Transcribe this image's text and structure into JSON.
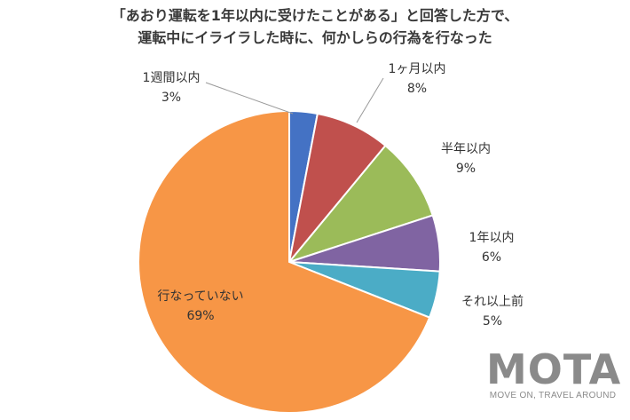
{
  "title": {
    "line1": "「あおり運転を1年以内に受けたことがある」と回答した方で、",
    "line2": "運転中にイライラした時に、何かしらの行為を行なった"
  },
  "chart_data": {
    "type": "pie",
    "slices": [
      {
        "label": "1週間以内",
        "value": 3,
        "value_label": "3%",
        "color": "#4472c4"
      },
      {
        "label": "1ヶ月以内",
        "value": 8,
        "value_label": "8%",
        "color": "#c0504d"
      },
      {
        "label": "半年以内",
        "value": 9,
        "value_label": "9%",
        "color": "#9bbb59"
      },
      {
        "label": "1年以内",
        "value": 6,
        "value_label": "6%",
        "color": "#8064a2"
      },
      {
        "label": "それ以上前",
        "value": 5,
        "value_label": "5%",
        "color": "#4bacc6"
      },
      {
        "label": "行なっていない",
        "value": 69,
        "value_label": "69%",
        "color": "#f79646"
      }
    ],
    "start": "12 o'clock",
    "direction": "clockwise"
  },
  "logo": {
    "text": "MOTA",
    "tagline": "MOVE ON, TRAVEL AROUND"
  }
}
